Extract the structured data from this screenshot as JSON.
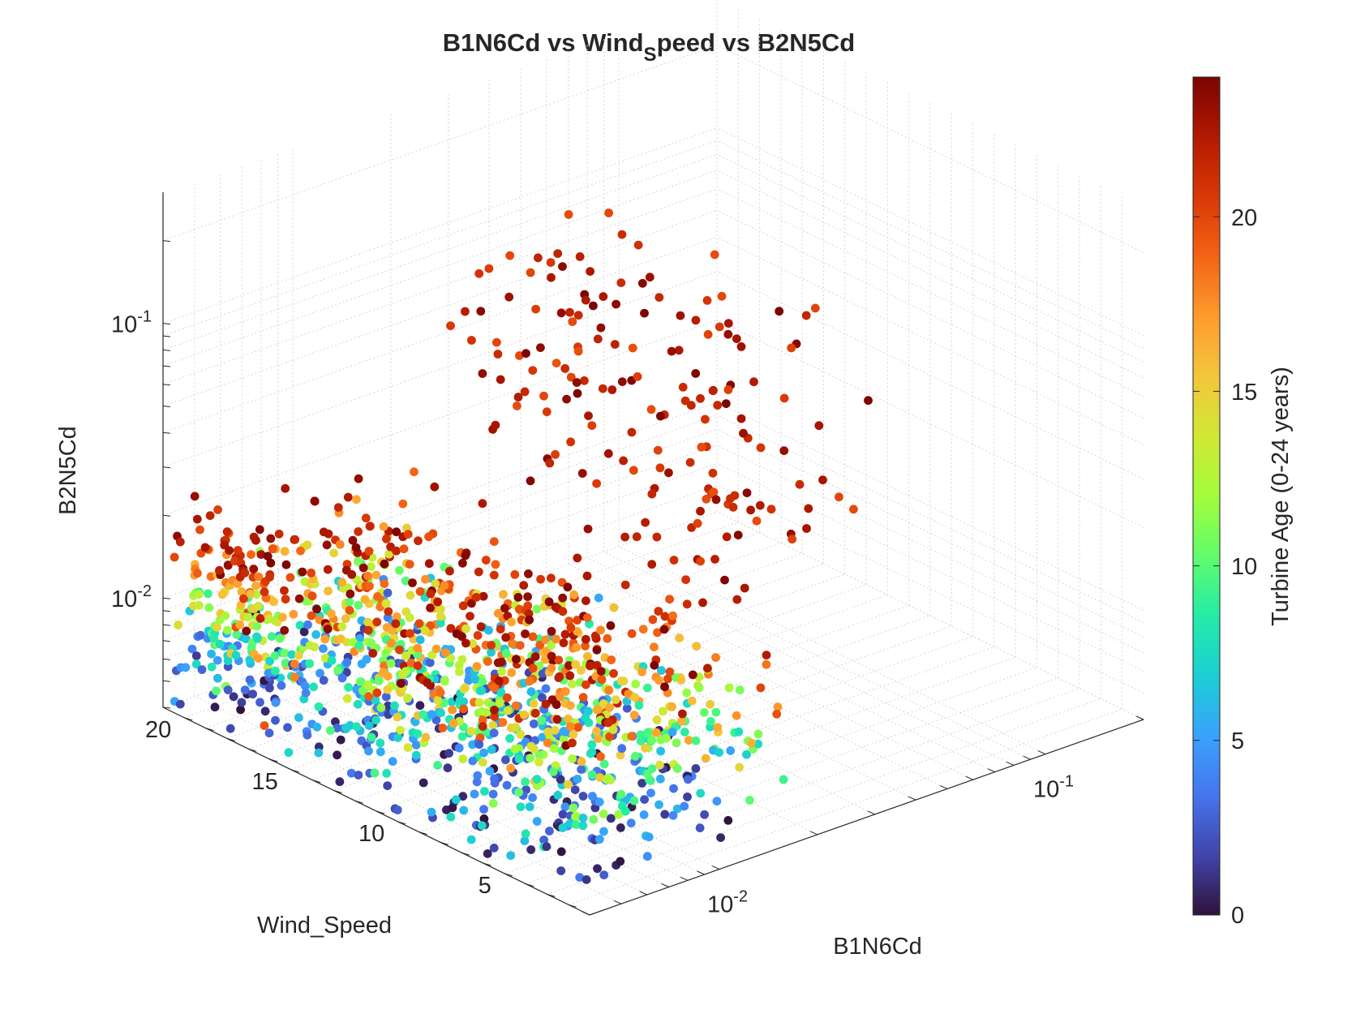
{
  "chart_data": {
    "type": "scatter3d",
    "title_main_a": "B1N6Cd vs Wind",
    "title_sub": "S",
    "title_main_b": "peed vs B2N5Cd",
    "xlabel": "B1N6Cd",
    "ylabel": "Wind_Speed",
    "zlabel": "B2N5Cd",
    "colorbar_label": "Turbine Age (0-24 years)",
    "x_scale": "log",
    "z_scale": "log",
    "grid": true,
    "x_ticks": [
      {
        "base": "10",
        "exp": "-2"
      },
      {
        "base": "10",
        "exp": "-1"
      }
    ],
    "y_ticks": [
      "20",
      "15",
      "10",
      "5"
    ],
    "z_ticks": [
      {
        "base": "10",
        "exp": "-1"
      },
      {
        "base": "10",
        "exp": "-2"
      }
    ],
    "colorbar_ticks": [
      "20",
      "15",
      "10",
      "5",
      "0"
    ],
    "color_range": [
      0,
      24
    ],
    "colormap": [
      "#30123b",
      "#4145ab",
      "#4675ed",
      "#39a2fc",
      "#1bcfd4",
      "#24eca6",
      "#61fc6c",
      "#a4fc3b",
      "#d1e834",
      "#f3c63a",
      "#fe9b2d",
      "#f36315",
      "#d93806",
      "#b11901",
      "#7a0403"
    ],
    "x_range": [
      0.004,
      0.2
    ],
    "y_range": [
      1,
      21
    ],
    "z_range": [
      0.004,
      0.3
    ],
    "point_summary": "approx. 1500 turbine records; B1N6Cd approx. 0.004-0.15, Wind_Speed approx. 2-21, B2N5Cd approx. 0.004-0.25; high B2N5Cd values concentrate at older turbine ages (20-24 years), low-age turbines sit near the B2N5Cd floor"
  }
}
